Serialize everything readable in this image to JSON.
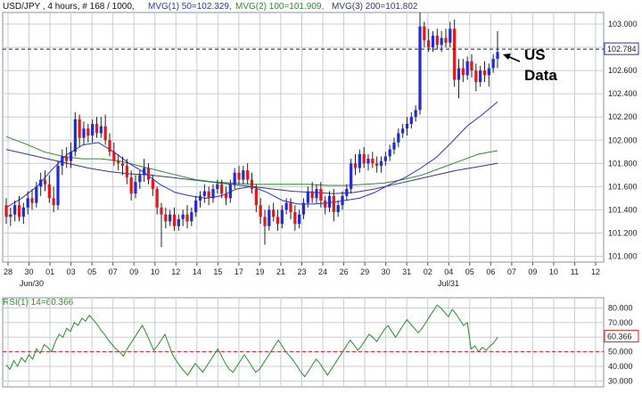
{
  "header": {
    "symbol_info": "USD/JPY , 4 hours, # 168 / 1000,",
    "ma1_label": "MVG(1) 50=102.329,",
    "ma2_label": "MVG(2) 100=101.909,",
    "ma3_label": "MVG(3) 200=101.802"
  },
  "colors": {
    "up_candle": "#1f2bd6",
    "down_candle": "#e01818",
    "ma50": "#2a35c4",
    "ma100": "#2c8a2c",
    "ma200": "#333a7a",
    "rsi": "#2c8a2c",
    "rsi_level": "#d02020",
    "grid": "#c6ccd6",
    "frame": "#8a93a3",
    "panel_bg": "#ffffff",
    "price_marker": "#3030a0"
  },
  "annotation": {
    "line1": "US",
    "line2": "Data"
  },
  "chart_data": [
    {
      "type": "candlestick",
      "title": "USD/JPY , 4 hours",
      "ylim": [
        100.95,
        103.1
      ],
      "y_ticks": [
        "103.000",
        "102.800",
        "102.600",
        "102.400",
        "102.200",
        "102.000",
        "101.800",
        "101.600",
        "101.400",
        "101.200",
        "101.000"
      ],
      "y_tick_values": [
        103.0,
        102.8,
        102.6,
        102.4,
        102.2,
        102.0,
        101.8,
        101.6,
        101.4,
        101.2,
        101.0
      ],
      "current_price": "102.784",
      "current_price_value": 102.784,
      "x_ticks": [
        "28",
        "30",
        "01",
        "03",
        "05",
        "07",
        "09",
        "10",
        "12",
        "14",
        "15",
        "17",
        "19",
        "21",
        "23",
        "24",
        "26",
        "29",
        "30",
        "31",
        "02",
        "04",
        "05",
        "06",
        "07",
        "09",
        "10",
        "11",
        "12"
      ],
      "x_month_labels": [
        "Jun/30",
        "Jul/31"
      ],
      "series": [
        {
          "name": "MVG(1) 50",
          "value": 102.329
        },
        {
          "name": "MVG(2) 100",
          "value": 101.909
        },
        {
          "name": "MVG(3) 200",
          "value": 101.802
        }
      ],
      "ma50_path": [
        101.42,
        101.5,
        101.6,
        101.75,
        101.88,
        101.96,
        101.98,
        101.9,
        101.8,
        101.72,
        101.62,
        101.55,
        101.52,
        101.5,
        101.52,
        101.58,
        101.6,
        101.55,
        101.48,
        101.45,
        101.45,
        101.46,
        101.48,
        101.5,
        101.55,
        101.62,
        101.68,
        101.76,
        101.85,
        101.98,
        102.12,
        102.22,
        102.33
      ],
      "ma100_path": [
        102.03,
        101.97,
        101.9,
        101.86,
        101.84,
        101.84,
        101.82,
        101.78,
        101.74,
        101.7,
        101.66,
        101.64,
        101.63,
        101.62,
        101.62,
        101.62,
        101.62,
        101.61,
        101.61,
        101.62,
        101.63,
        101.66,
        101.7,
        101.76,
        101.82,
        101.88,
        101.91
      ],
      "ma200_path": [
        101.92,
        101.88,
        101.84,
        101.8,
        101.76,
        101.73,
        101.71,
        101.7,
        101.68,
        101.66,
        101.64,
        101.62,
        101.6,
        101.58,
        101.56,
        101.55,
        101.54,
        101.55,
        101.58,
        101.62,
        101.66,
        101.7,
        101.74,
        101.77,
        101.8
      ],
      "ohlc": [
        [
          101.44,
          101.5,
          101.28,
          101.34
        ],
        [
          101.34,
          101.42,
          101.26,
          101.36
        ],
        [
          101.36,
          101.48,
          101.3,
          101.44
        ],
        [
          101.44,
          101.52,
          101.3,
          101.34
        ],
        [
          101.34,
          101.46,
          101.28,
          101.42
        ],
        [
          101.42,
          101.56,
          101.36,
          101.5
        ],
        [
          101.5,
          101.58,
          101.4,
          101.46
        ],
        [
          101.46,
          101.64,
          101.42,
          101.6
        ],
        [
          101.6,
          101.72,
          101.52,
          101.66
        ],
        [
          101.66,
          101.74,
          101.56,
          101.62
        ],
        [
          101.62,
          101.7,
          101.46,
          101.5
        ],
        [
          101.5,
          101.6,
          101.38,
          101.44
        ],
        [
          101.44,
          101.82,
          101.4,
          101.78
        ],
        [
          101.78,
          101.92,
          101.7,
          101.86
        ],
        [
          101.86,
          101.94,
          101.76,
          101.82
        ],
        [
          101.82,
          101.98,
          101.76,
          101.9
        ],
        [
          101.9,
          102.24,
          101.86,
          102.18
        ],
        [
          102.18,
          102.22,
          101.94,
          102.02
        ],
        [
          102.02,
          102.16,
          101.96,
          102.1
        ],
        [
          102.1,
          102.14,
          101.98,
          102.04
        ],
        [
          102.04,
          102.18,
          101.98,
          102.14
        ],
        [
          102.14,
          102.2,
          102.02,
          102.06
        ],
        [
          102.06,
          102.2,
          102.02,
          102.12
        ],
        [
          102.12,
          102.22,
          101.96,
          102.0
        ],
        [
          102.0,
          102.06,
          101.86,
          101.9
        ],
        [
          101.9,
          101.98,
          101.78,
          101.82
        ],
        [
          101.82,
          101.88,
          101.74,
          101.8
        ],
        [
          101.8,
          101.86,
          101.7,
          101.78
        ],
        [
          101.78,
          101.84,
          101.62,
          101.68
        ],
        [
          101.68,
          101.74,
          101.48,
          101.54
        ],
        [
          101.54,
          101.7,
          101.5,
          101.64
        ],
        [
          101.64,
          101.74,
          101.58,
          101.7
        ],
        [
          101.7,
          101.84,
          101.64,
          101.76
        ],
        [
          101.76,
          101.8,
          101.62,
          101.66
        ],
        [
          101.66,
          101.7,
          101.52,
          101.58
        ],
        [
          101.58,
          101.6,
          101.36,
          101.42
        ],
        [
          101.42,
          101.46,
          101.08,
          101.36
        ],
        [
          101.36,
          101.42,
          101.24,
          101.3
        ],
        [
          101.3,
          101.4,
          101.26,
          101.36
        ],
        [
          101.36,
          101.42,
          101.22,
          101.26
        ],
        [
          101.26,
          101.36,
          101.22,
          101.32
        ],
        [
          101.32,
          101.4,
          101.26,
          101.36
        ],
        [
          101.36,
          101.44,
          101.24,
          101.3
        ],
        [
          101.3,
          101.42,
          101.26,
          101.38
        ],
        [
          101.38,
          101.52,
          101.34,
          101.48
        ],
        [
          101.48,
          101.56,
          101.42,
          101.52
        ],
        [
          101.52,
          101.62,
          101.46,
          101.56
        ],
        [
          101.56,
          101.6,
          101.44,
          101.5
        ],
        [
          101.5,
          101.62,
          101.46,
          101.58
        ],
        [
          101.58,
          101.66,
          101.54,
          101.62
        ],
        [
          101.62,
          101.66,
          101.5,
          101.54
        ],
        [
          101.54,
          101.6,
          101.44,
          101.5
        ],
        [
          101.5,
          101.66,
          101.46,
          101.62
        ],
        [
          101.62,
          101.76,
          101.58,
          101.72
        ],
        [
          101.72,
          101.78,
          101.62,
          101.66
        ],
        [
          101.66,
          101.78,
          101.62,
          101.74
        ],
        [
          101.74,
          101.8,
          101.62,
          101.66
        ],
        [
          101.66,
          101.72,
          101.54,
          101.58
        ],
        [
          101.58,
          101.62,
          101.38,
          101.44
        ],
        [
          101.44,
          101.5,
          101.28,
          101.34
        ],
        [
          101.34,
          101.4,
          101.1,
          101.26
        ],
        [
          101.26,
          101.44,
          101.22,
          101.4
        ],
        [
          101.4,
          101.46,
          101.3,
          101.34
        ],
        [
          101.34,
          101.4,
          101.22,
          101.28
        ],
        [
          101.28,
          101.44,
          101.24,
          101.4
        ],
        [
          101.4,
          101.5,
          101.36,
          101.46
        ],
        [
          101.46,
          101.5,
          101.32,
          101.38
        ],
        [
          101.38,
          101.44,
          101.22,
          101.28
        ],
        [
          101.28,
          101.4,
          101.24,
          101.36
        ],
        [
          101.36,
          101.5,
          101.32,
          101.46
        ],
        [
          101.46,
          101.6,
          101.42,
          101.56
        ],
        [
          101.56,
          101.64,
          101.46,
          101.5
        ],
        [
          101.5,
          101.62,
          101.46,
          101.58
        ],
        [
          101.58,
          101.64,
          101.42,
          101.48
        ],
        [
          101.48,
          101.52,
          101.36,
          101.42
        ],
        [
          101.42,
          101.56,
          101.38,
          101.52
        ],
        [
          101.52,
          101.58,
          101.3,
          101.38
        ],
        [
          101.38,
          101.48,
          101.34,
          101.44
        ],
        [
          101.44,
          101.56,
          101.4,
          101.52
        ],
        [
          101.52,
          101.62,
          101.48,
          101.58
        ],
        [
          101.58,
          101.84,
          101.54,
          101.8
        ],
        [
          101.8,
          101.88,
          101.7,
          101.76
        ],
        [
          101.76,
          101.92,
          101.72,
          101.88
        ],
        [
          101.88,
          101.94,
          101.76,
          101.8
        ],
        [
          101.8,
          101.88,
          101.74,
          101.84
        ],
        [
          101.84,
          101.9,
          101.76,
          101.8
        ],
        [
          101.8,
          101.86,
          101.72,
          101.78
        ],
        [
          101.78,
          101.86,
          101.72,
          101.82
        ],
        [
          101.82,
          101.9,
          101.78,
          101.86
        ],
        [
          101.86,
          101.96,
          101.82,
          101.92
        ],
        [
          101.92,
          102.02,
          101.88,
          101.98
        ],
        [
          101.98,
          102.1,
          101.94,
          102.06
        ],
        [
          102.06,
          102.14,
          102.02,
          102.1
        ],
        [
          102.1,
          102.2,
          102.04,
          102.14
        ],
        [
          102.14,
          102.24,
          102.1,
          102.2
        ],
        [
          102.2,
          102.3,
          102.16,
          102.26
        ],
        [
          102.26,
          103.1,
          102.22,
          102.98
        ],
        [
          102.98,
          103.02,
          102.8,
          102.86
        ],
        [
          102.86,
          102.96,
          102.76,
          102.8
        ],
        [
          102.8,
          102.94,
          102.76,
          102.9
        ],
        [
          102.9,
          102.96,
          102.78,
          102.82
        ],
        [
          102.82,
          102.94,
          102.76,
          102.88
        ],
        [
          102.88,
          102.96,
          102.8,
          102.84
        ],
        [
          102.84,
          103.02,
          102.8,
          102.96
        ],
        [
          102.96,
          103.04,
          102.46,
          102.52
        ],
        [
          102.52,
          102.7,
          102.36,
          102.62
        ],
        [
          102.62,
          102.7,
          102.5,
          102.56
        ],
        [
          102.56,
          102.72,
          102.52,
          102.68
        ],
        [
          102.68,
          102.74,
          102.54,
          102.6
        ],
        [
          102.6,
          102.66,
          102.42,
          102.5
        ],
        [
          102.5,
          102.64,
          102.46,
          102.6
        ],
        [
          102.6,
          102.68,
          102.5,
          102.56
        ],
        [
          102.56,
          102.66,
          102.46,
          102.62
        ],
        [
          102.62,
          102.74,
          102.58,
          102.7
        ],
        [
          102.7,
          102.94,
          102.62,
          102.76
        ]
      ]
    },
    {
      "type": "line",
      "title": "RSI(1) 14=60.366",
      "name": "RSI(1) 14",
      "ylim": [
        26,
        87
      ],
      "y_ticks": [
        "80.000",
        "70.000",
        "60.000",
        "50.000",
        "40.000",
        "30.000"
      ],
      "y_tick_values": [
        80,
        70,
        60,
        50,
        40,
        30
      ],
      "current_value": "60.366",
      "current_value_num": 60.366,
      "level": 50,
      "values": [
        41,
        38,
        44,
        40,
        46,
        43,
        48,
        45,
        52,
        49,
        55,
        53,
        50,
        57,
        62,
        60,
        66,
        64,
        70,
        68,
        73,
        71,
        75,
        72,
        69,
        65,
        62,
        58,
        55,
        52,
        50,
        47,
        52,
        56,
        60,
        64,
        68,
        63,
        57,
        51,
        54,
        58,
        62,
        55,
        48,
        44,
        40,
        37,
        34,
        38,
        42,
        39,
        36,
        40,
        44,
        48,
        52,
        47,
        42,
        38,
        36,
        40,
        44,
        48,
        44,
        40,
        36,
        38,
        42,
        46,
        50,
        54,
        58,
        54,
        50,
        47,
        44,
        40,
        36,
        33,
        37,
        41,
        45,
        42,
        38,
        34,
        38,
        42,
        46,
        50,
        54,
        58,
        55,
        51,
        54,
        58,
        62,
        60,
        57,
        61,
        65,
        68,
        64,
        60,
        64,
        68,
        72,
        69,
        66,
        63,
        66,
        70,
        74,
        78,
        82,
        80,
        77,
        74,
        79,
        76,
        72,
        68,
        70,
        52,
        54,
        50,
        53,
        51,
        54,
        56,
        60
      ]
    }
  ]
}
